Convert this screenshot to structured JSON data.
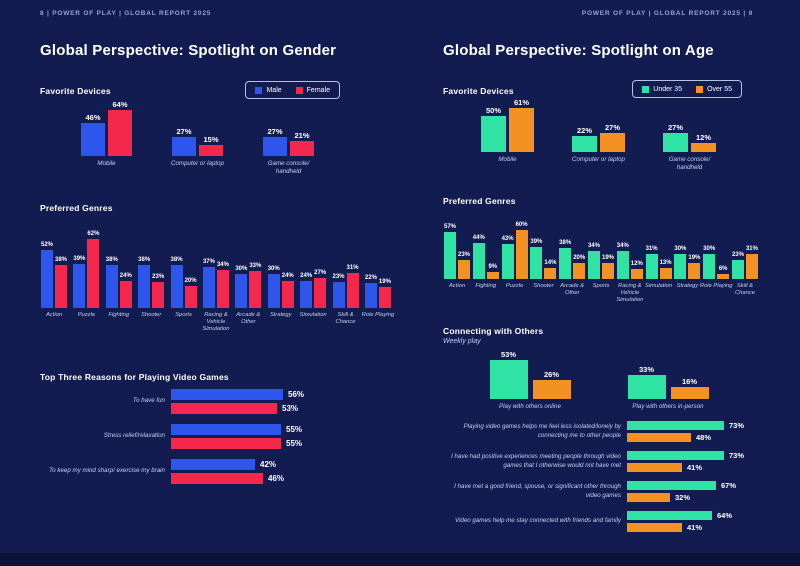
{
  "accent_colors": {
    "male_blue": "#2E55EC",
    "female_red": "#F5274C",
    "under35_green": "#2EE3A3",
    "over55_orange": "#F39123",
    "background_navy": "#131C51",
    "muted_label": "#C6CFF0"
  },
  "left_page": {
    "header": "8   |   POWER OF PLAY   |   GLOBAL REPORT 2025",
    "title": "Global Perspective: Spotlight on Gender",
    "legend": [
      {
        "label": "Male",
        "color": "#2E55EC"
      },
      {
        "label": "Female",
        "color": "#F5274C"
      }
    ],
    "sections": {
      "devices": {
        "heading": "Favorite Devices"
      },
      "genres": {
        "heading": "Preferred Genres"
      },
      "reasons": {
        "heading": "Top Three Reasons for Playing Video Games"
      }
    }
  },
  "right_page": {
    "header": "POWER OF PLAY   |   GLOBAL REPORT 2025   |   9",
    "title": "Global Perspective: Spotlight on Age",
    "legend": [
      {
        "label": "Under 35",
        "color": "#2EE3A3"
      },
      {
        "label": "Over 55",
        "color": "#F39123"
      }
    ],
    "sections": {
      "devices": {
        "heading": "Favorite Devices"
      },
      "genres": {
        "heading": "Preferred Genres"
      },
      "connecting": {
        "heading": "Connecting with Others",
        "subtitle": "Weekly play"
      }
    }
  },
  "chart_data": [
    {
      "id": "gender-devices",
      "type": "bar",
      "title": "Favorite Devices",
      "categories": [
        "Mobile",
        "Computer or laptop",
        "Game console/\nhandheld"
      ],
      "series": [
        {
          "name": "Male",
          "color": "#2E55EC",
          "values": [
            46,
            27,
            27
          ]
        },
        {
          "name": "Female",
          "color": "#F5274C",
          "values": [
            64,
            15,
            21
          ]
        }
      ],
      "value_suffix": "%",
      "ylim": [
        0,
        70
      ],
      "legend_position": "top-right",
      "grid": false
    },
    {
      "id": "gender-genres",
      "type": "bar",
      "title": "Preferred Genres",
      "categories": [
        "Action",
        "Puzzle",
        "Fighting",
        "Shooter",
        "Sports",
        "Racing & Vehicle Simulation",
        "Arcade & Other",
        "Strategy",
        "Simulation",
        "Skill & Chance",
        "Role Playing"
      ],
      "series": [
        {
          "name": "Male",
          "color": "#2E55EC",
          "values": [
            52,
            39,
            38,
            38,
            38,
            37,
            30,
            30,
            24,
            23,
            22
          ]
        },
        {
          "name": "Female",
          "color": "#F5274C",
          "values": [
            38,
            62,
            24,
            23,
            20,
            34,
            33,
            24,
            27,
            31,
            19
          ]
        }
      ],
      "value_suffix": "%",
      "ylim": [
        0,
        70
      ],
      "grid": false
    },
    {
      "id": "gender-reasons",
      "type": "bar-horizontal",
      "title": "Top Three Reasons for Playing Video Games",
      "categories": [
        "To have fun",
        "Stress relief/relaxation",
        "To keep my mind sharp/ exercise my brain"
      ],
      "series": [
        {
          "name": "Male",
          "color": "#2E55EC",
          "values": [
            56,
            55,
            42
          ]
        },
        {
          "name": "Female",
          "color": "#F5274C",
          "values": [
            53,
            55,
            46
          ]
        }
      ],
      "value_suffix": "%",
      "xlim": [
        0,
        60
      ],
      "grid": false
    },
    {
      "id": "age-devices",
      "type": "bar",
      "title": "Favorite Devices",
      "categories": [
        "Mobile",
        "Computer or laptop",
        "Game console/\nhandheld"
      ],
      "series": [
        {
          "name": "Under 35",
          "color": "#2EE3A3",
          "values": [
            50,
            22,
            27
          ]
        },
        {
          "name": "Over 55",
          "color": "#F39123",
          "values": [
            61,
            27,
            12
          ]
        }
      ],
      "value_suffix": "%",
      "ylim": [
        0,
        70
      ],
      "legend_position": "top-right",
      "grid": false
    },
    {
      "id": "age-genres",
      "type": "bar",
      "title": "Preferred Genres",
      "categories": [
        "Action",
        "Fighting",
        "Puzzle",
        "Shooter",
        "Arcade & Other",
        "Sports",
        "Racing & Vehicle Simulation",
        "Simulation",
        "Strategy",
        "Role Playing",
        "Skill & Chance"
      ],
      "series": [
        {
          "name": "Under 35",
          "color": "#2EE3A3",
          "values": [
            57,
            44,
            43,
            39,
            38,
            34,
            34,
            31,
            30,
            30,
            23
          ]
        },
        {
          "name": "Over 55",
          "color": "#F39123",
          "values": [
            23,
            9,
            60,
            14,
            20,
            19,
            12,
            13,
            19,
            6,
            31
          ]
        }
      ],
      "value_suffix": "%",
      "ylim": [
        0,
        65
      ],
      "grid": false
    },
    {
      "id": "age-connecting",
      "type": "bar",
      "title": "Connecting with Others",
      "subtitle": "Weekly play",
      "categories": [
        "Play with others online",
        "Play with others in-person"
      ],
      "series": [
        {
          "name": "Under 35",
          "color": "#2EE3A3",
          "values": [
            53,
            33
          ]
        },
        {
          "name": "Over 55",
          "color": "#F39123",
          "values": [
            26,
            16
          ]
        }
      ],
      "value_suffix": "%",
      "ylim": [
        0,
        60
      ],
      "grid": false
    },
    {
      "id": "age-statements",
      "type": "bar-horizontal",
      "categories": [
        "Playing video games helps me feel less isolated/lonely by connecting me to other people",
        "I have had positive experiences meeting people through video games that I otherwise would not have met",
        "I have met a good friend, spouse, or significant other through video games",
        "Video games help me stay connected with friends and family"
      ],
      "series": [
        {
          "name": "Under 35",
          "color": "#2EE3A3",
          "values": [
            73,
            73,
            67,
            64
          ]
        },
        {
          "name": "Over 55",
          "color": "#F39123",
          "values": [
            48,
            41,
            32,
            41
          ]
        }
      ],
      "value_suffix": "%",
      "xlim": [
        0,
        80
      ],
      "grid": false
    }
  ]
}
